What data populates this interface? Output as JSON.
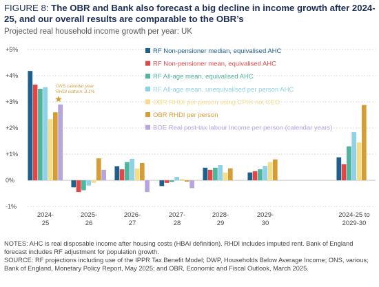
{
  "header": {
    "figure_label": "FIGURE 8: ",
    "title": "The OBR and Bank also forecast a big decline in income growth after 2024-25, and our overall results are comparable to the OBR’s",
    "subtitle": "Projected real household income growth per year: UK"
  },
  "chart_data": {
    "type": "bar",
    "ylim": [
      -1,
      5
    ],
    "yticks": [
      "-1%",
      "0%",
      "+1%",
      "+2%",
      "+3%",
      "+4%",
      "+5%"
    ],
    "grid": true,
    "legend_position": "top-right",
    "categories": [
      [
        "2024-",
        "25"
      ],
      [
        "2025-",
        "26"
      ],
      [
        "2026-",
        "27"
      ],
      [
        "2027-",
        "28"
      ],
      [
        "2028-",
        "29"
      ],
      [
        "2029-",
        "30"
      ],
      [
        "2024-25 to",
        "2029-30"
      ]
    ],
    "series": [
      {
        "name": "RF Non-pensioner median, equivalised AHC",
        "color": "#1f5f8b",
        "values": [
          4.18,
          -0.27,
          0.54,
          -0.22,
          0.48,
          0.3,
          0.88
        ]
      },
      {
        "name": "RF Non-pensioner mean, equivalised AHC",
        "color": "#e04848",
        "values": [
          3.66,
          -0.45,
          0.42,
          -0.1,
          0.4,
          0.35,
          0.62
        ]
      },
      {
        "name": "RF All-age mean, equivalised AHC",
        "color": "#4fb59e",
        "values": [
          3.5,
          -0.38,
          0.7,
          -0.06,
          0.48,
          0.42,
          1.3
        ]
      },
      {
        "name": "RF All-age mean, unequivalised per person AHC",
        "color": "#8fd1e6",
        "values": [
          3.56,
          -0.2,
          0.82,
          0.13,
          0.58,
          0.55,
          1.84
        ]
      },
      {
        "name": "OBR RHDI per person using CPIH not CEO",
        "color": "#f6dd8a",
        "values": [
          2.34,
          -0.1,
          0.45,
          0.05,
          0.3,
          0.7,
          1.45
        ]
      },
      {
        "name": "OBR RHDI per person",
        "color": "#d69d35",
        "values": [
          2.6,
          0.84,
          0.66,
          -0.05,
          0.46,
          0.8,
          2.88
        ]
      },
      {
        "name": "BOE Real post-tax labour income per person (calendar years)",
        "color": "#b7a6dd",
        "values": [
          2.9,
          0.4,
          -0.45,
          -0.3,
          null,
          null,
          null
        ]
      }
    ],
    "annotation": {
      "lines": [
        "ONS calendar year",
        "RHDI outturn: 3.1%"
      ],
      "value": 3.1,
      "category_index": 0
    }
  },
  "notes": {
    "line1": "NOTES: AHC is real disposable income after housing costs (HBAI definition). RHDI includes imputed rent. Bank of England forecast includes RF adjustment for population growth.",
    "line2": "SOURCE: RF projections including use of the IPPR Tax Benefit Model; DWP, Households Below Average Income; ONS, various; Bank of England, Monetary Policy Report, May 2025; and OBR, Economic and Fiscal Outlook, March 2025."
  }
}
